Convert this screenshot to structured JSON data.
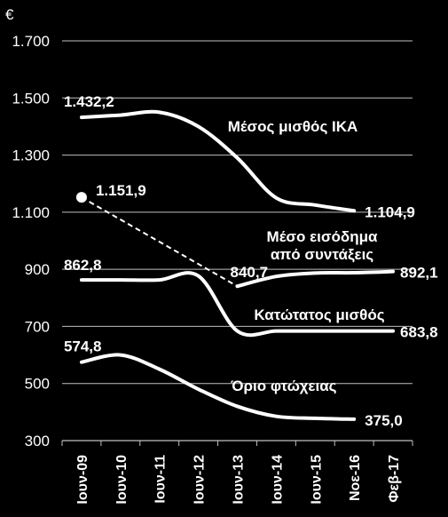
{
  "chart_data": {
    "type": "line",
    "unit_label": "€",
    "categories": [
      "Ιουν-09",
      "Ιουν-10",
      "Ιουν-11",
      "Ιουν-12",
      "Ιουν-13",
      "Ιουν-14",
      "Ιουν-15",
      "Νοε-16",
      "Φεβ-17"
    ],
    "ylim": [
      300,
      1700
    ],
    "yticks": [
      300,
      500,
      700,
      900,
      1100,
      1300,
      1500,
      1700
    ],
    "ytick_labels": [
      "300",
      "500",
      "700",
      "900",
      "1.100",
      "1.300",
      "1.500",
      "1.700"
    ],
    "grid": true,
    "legend": "none",
    "series": [
      {
        "name": "Μέσος μισθός ΙΚΑ",
        "values": [
          1432.2,
          1440,
          1450,
          1400,
          1290,
          1150,
          1125,
          1104.9,
          null
        ],
        "style": "solid",
        "start_label": "1.432,2",
        "end_label": "1.104,9"
      },
      {
        "name_lines": [
          "Μέσο εισόδημα",
          "από συντάξεις"
        ],
        "values": [
          1151.9,
          null,
          null,
          null,
          840.7,
          875,
          887,
          888,
          892.1
        ],
        "style": "mixed",
        "dashed_until_index": 4,
        "start_label": "1.151,9",
        "mid_label": "840,7",
        "end_label": "892,1"
      },
      {
        "name": "Κατώτατος μισθός",
        "values": [
          862.8,
          862.8,
          862.8,
          877,
          683.8,
          683.8,
          683.8,
          683.8,
          683.8
        ],
        "style": "solid",
        "start_label": "862,8",
        "end_label": "683,8"
      },
      {
        "name": "Όριο φτώχειας",
        "values": [
          574.8,
          600,
          550,
          480,
          420,
          385,
          378,
          375.0,
          null
        ],
        "style": "solid",
        "start_label": "574,8",
        "end_label": "375,0"
      }
    ],
    "colors": {
      "background": "#000000",
      "line": "#ffffff",
      "grid": "#bfbfbf",
      "text": "#ffffff"
    }
  }
}
